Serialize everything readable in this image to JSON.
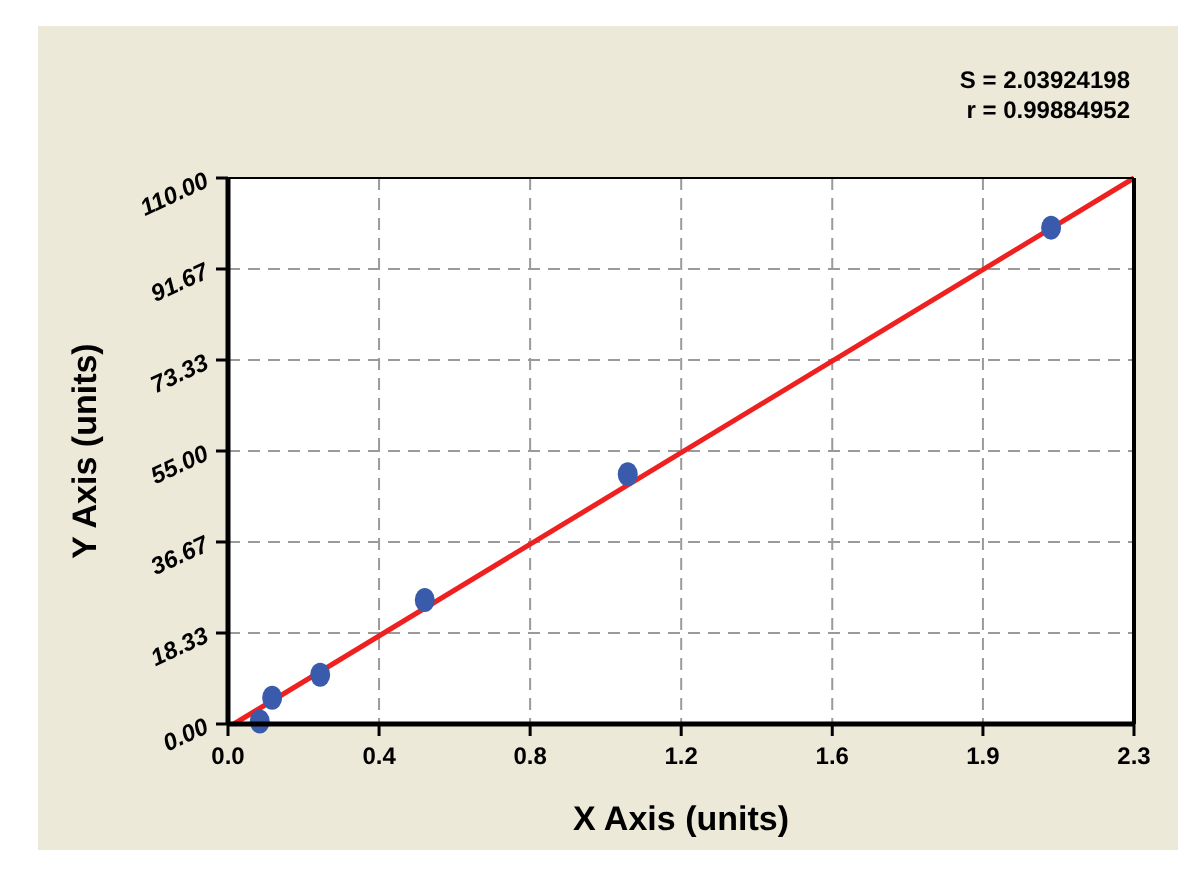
{
  "chart_data": {
    "type": "scatter",
    "xlabel": "X Axis (units)",
    "ylabel": "Y Axis (units)",
    "annotations": [
      "S = 2.03924198",
      "r = 0.99884952"
    ],
    "series": [
      {
        "color": "#3a5bab",
        "marker": "circle",
        "x": [
          0.082,
          0.114,
          0.238,
          0.508,
          1.032,
          2.125
        ],
        "values": [
          0.5,
          5.3,
          9.9,
          25.0,
          50.3,
          100.0
        ]
      },
      {
        "type": "line",
        "color": "#ee2020",
        "x": [
          0.015,
          2.339
        ],
        "values": [
          0,
          110
        ]
      }
    ],
    "xlim": [
      0,
      2.339
    ],
    "ylim": [
      0,
      110
    ],
    "xticks": [
      {
        "value": 0,
        "label": "0.0"
      },
      {
        "value": 0.39,
        "label": "0.4"
      },
      {
        "value": 0.78,
        "label": "0.8"
      },
      {
        "value": 1.17,
        "label": "1.2"
      },
      {
        "value": 1.56,
        "label": "1.6"
      },
      {
        "value": 1.949,
        "label": "1.9"
      },
      {
        "value": 2.339,
        "label": "2.3"
      }
    ],
    "yticks": [
      {
        "value": 0,
        "label": "0.00"
      },
      {
        "value": 18.33,
        "label": "18.33"
      },
      {
        "value": 36.67,
        "label": "36.67"
      },
      {
        "value": 55,
        "label": "55.00"
      },
      {
        "value": 73.33,
        "label": "73.33"
      },
      {
        "value": 91.67,
        "label": "91.67"
      },
      {
        "value": 110,
        "label": "110.00"
      }
    ],
    "grid": true,
    "line_style": "solid"
  }
}
